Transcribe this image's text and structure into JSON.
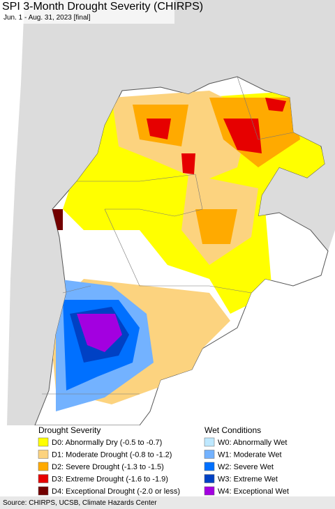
{
  "header": {
    "title": "SPI 3-Month Drought Severity (CHIRPS)",
    "subtitle": "Jun. 1 - Aug. 31, 2023 [final]"
  },
  "legend": [
    {
      "title": "Drought Severity",
      "items": [
        {
          "label": "D0: Abnormally Dry (-0.5 to -0.7)",
          "color": "#ffff00"
        },
        {
          "label": "D1: Moderate Drought (-0.8 to -1.2)",
          "color": "#fcd37f"
        },
        {
          "label": "D2: Severe Drought (-1.3 to -1.5)",
          "color": "#ffaa00"
        },
        {
          "label": "D3: Extreme Drought (-1.6 to -1.9)",
          "color": "#e60000"
        },
        {
          "label": "D4: Exceptional Drought (-2.0 or less)",
          "color": "#730000"
        }
      ]
    },
    {
      "title": "Wet Conditions",
      "items": [
        {
          "label": "W0: Abnormally Wet",
          "color": "#bee8ff"
        },
        {
          "label": "W1: Moderate Wet",
          "color": "#73b2ff"
        },
        {
          "label": "W2: Severe Wet",
          "color": "#0070ff"
        },
        {
          "label": "W3: Extreme Wet",
          "color": "#0041c4"
        },
        {
          "label": "W4: Exceptional Wet",
          "color": "#a300e0"
        }
      ]
    }
  ],
  "source": "Source: CHIRPS, UCSB, Climate Hazards Center"
}
